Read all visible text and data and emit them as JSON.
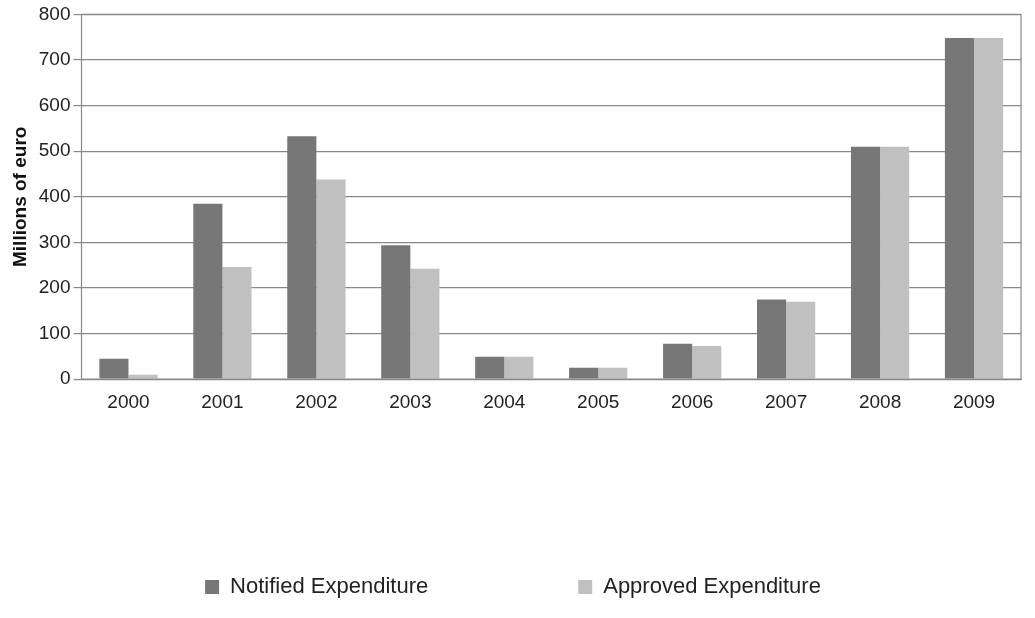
{
  "chart_data": {
    "type": "bar",
    "ylabel": "Millions of euro",
    "categories": [
      "2000",
      "2001",
      "2002",
      "2003",
      "2004",
      "2005",
      "2006",
      "2007",
      "2008",
      "2009"
    ],
    "series": [
      {
        "name": "Notified Expenditure",
        "color": "#777777",
        "values": [
          45,
          385,
          533,
          294,
          49,
          25,
          78,
          175,
          510,
          748
        ]
      },
      {
        "name": "Approved Expenditure",
        "color": "#c0c0c0",
        "values": [
          10,
          246,
          438,
          242,
          49,
          25,
          73,
          170,
          510,
          748
        ]
      }
    ],
    "ylim": [
      0,
      800
    ],
    "yticks": [
      0,
      100,
      200,
      300,
      400,
      500,
      600,
      700,
      800
    ],
    "grid": "y",
    "legend": "bottom"
  }
}
